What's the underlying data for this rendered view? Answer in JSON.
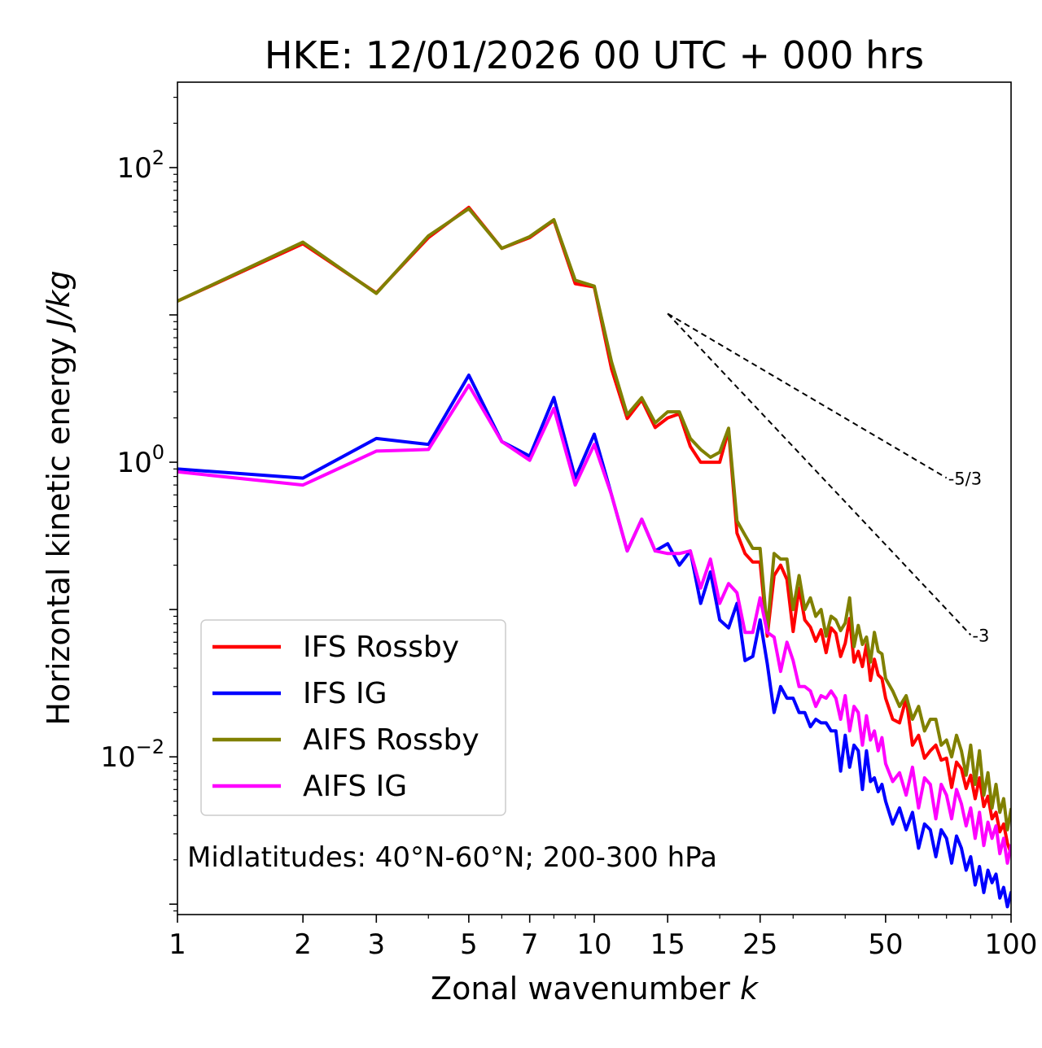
{
  "chart_data": {
    "type": "line",
    "title": "HKE: 12/01/2026 00 UTC + 000 hrs",
    "xlabel": "Zonal wavenumber",
    "xlabel_var": "k",
    "ylabel": "Horizontal kinetic energy",
    "ylabel_unit": "J/kg",
    "xscale": "log",
    "yscale": "log",
    "xlim": [
      1,
      100
    ],
    "ylim": [
      0.00085,
      380
    ],
    "xticks": [
      {
        "value": 1,
        "label": "1"
      },
      {
        "value": 2,
        "label": "2"
      },
      {
        "value": 3,
        "label": "3"
      },
      {
        "value": 5,
        "label": "5"
      },
      {
        "value": 7,
        "label": "7"
      },
      {
        "value": 10,
        "label": "10"
      },
      {
        "value": 15,
        "label": "15"
      },
      {
        "value": 25,
        "label": "25"
      },
      {
        "value": 50,
        "label": "50"
      },
      {
        "value": 100,
        "label": "100"
      }
    ],
    "yticks": [
      {
        "value": 100,
        "base": "10",
        "exp": "2"
      },
      {
        "value": 1,
        "base": "10",
        "exp": "0"
      },
      {
        "value": 0.01,
        "base": "10",
        "exp": "−2"
      }
    ],
    "annotation": "Midlatitudes: 40°N-60°N; 200-300 hPa",
    "reference_lines": [
      {
        "label": "-5/3",
        "slope": -1.6667,
        "x": [
          15,
          70
        ],
        "y0": 10.2
      },
      {
        "label": "-3",
        "slope": -3,
        "x": [
          15,
          80
        ],
        "y0": 10.2
      }
    ],
    "legend_position": "lower-left",
    "series": [
      {
        "name": "IFS Rossby",
        "color": "#ff0000",
        "x": [
          1,
          2,
          3,
          4,
          5,
          6,
          7,
          8,
          9,
          10,
          11,
          12,
          13,
          14,
          15,
          16,
          17,
          18,
          19,
          20,
          21,
          22,
          23,
          24,
          25,
          26,
          27,
          28,
          29,
          30,
          31,
          32,
          33,
          34,
          35,
          36,
          37,
          38,
          39,
          40,
          41,
          42,
          43,
          44,
          45,
          46,
          47,
          48,
          49,
          50,
          52,
          54,
          56,
          58,
          60,
          62,
          64,
          66,
          68,
          70,
          72,
          74,
          76,
          78,
          80,
          82,
          84,
          86,
          88,
          90,
          92,
          94,
          96,
          98,
          100
        ],
        "y": [
          12.4,
          30.4,
          14.1,
          33.5,
          53.7,
          28.3,
          33.5,
          43.8,
          16.3,
          15.5,
          4.3,
          1.98,
          2.65,
          1.72,
          2.0,
          2.13,
          1.28,
          1.0,
          1.0,
          1.0,
          1.65,
          0.33,
          0.24,
          0.21,
          0.21,
          0.066,
          0.17,
          0.2,
          0.16,
          0.071,
          0.14,
          0.085,
          0.076,
          0.061,
          0.073,
          0.051,
          0.075,
          0.069,
          0.048,
          0.059,
          0.087,
          0.044,
          0.052,
          0.041,
          0.058,
          0.033,
          0.046,
          0.036,
          0.034,
          0.025,
          0.018,
          0.017,
          0.025,
          0.012,
          0.014,
          0.0098,
          0.011,
          0.012,
          0.0095,
          0.0098,
          0.0062,
          0.0092,
          0.0083,
          0.0061,
          0.0075,
          0.0052,
          0.0072,
          0.0046,
          0.0054,
          0.0038,
          0.0042,
          0.0031,
          0.0035,
          0.0026,
          0.0022
        ]
      },
      {
        "name": "IFS IG",
        "color": "#0000ff",
        "x": [
          1,
          2,
          3,
          4,
          5,
          6,
          7,
          8,
          9,
          10,
          11,
          12,
          13,
          14,
          15,
          16,
          17,
          18,
          19,
          20,
          21,
          22,
          23,
          24,
          25,
          26,
          27,
          28,
          29,
          30,
          31,
          32,
          33,
          34,
          35,
          36,
          37,
          38,
          39,
          40,
          41,
          42,
          43,
          44,
          45,
          46,
          47,
          48,
          49,
          50,
          52,
          54,
          56,
          58,
          60,
          62,
          64,
          66,
          68,
          70,
          72,
          74,
          76,
          78,
          80,
          82,
          84,
          86,
          88,
          90,
          92,
          94,
          96,
          98,
          100
        ],
        "y": [
          0.9,
          0.78,
          1.45,
          1.32,
          3.9,
          1.38,
          1.1,
          2.75,
          0.78,
          1.55,
          0.6,
          0.25,
          0.41,
          0.25,
          0.28,
          0.2,
          0.25,
          0.11,
          0.18,
          0.085,
          0.075,
          0.11,
          0.045,
          0.048,
          0.085,
          0.043,
          0.02,
          0.03,
          0.025,
          0.025,
          0.02,
          0.02,
          0.016,
          0.018,
          0.017,
          0.017,
          0.015,
          0.015,
          0.008,
          0.014,
          0.0085,
          0.012,
          0.011,
          0.006,
          0.011,
          0.0068,
          0.0072,
          0.0058,
          0.0065,
          0.005,
          0.0035,
          0.0045,
          0.0032,
          0.0042,
          0.0024,
          0.0035,
          0.0032,
          0.0021,
          0.0032,
          0.0028,
          0.0019,
          0.0029,
          0.0024,
          0.0017,
          0.0021,
          0.00135,
          0.0018,
          0.0012,
          0.0017,
          0.0014,
          0.0016,
          0.0011,
          0.0013,
          0.00096,
          0.0012
        ]
      },
      {
        "name": "AIFS Rossby",
        "color": "#808000",
        "x": [
          1,
          2,
          3,
          4,
          5,
          6,
          7,
          8,
          9,
          10,
          11,
          12,
          13,
          14,
          15,
          16,
          17,
          18,
          19,
          20,
          21,
          22,
          23,
          24,
          25,
          26,
          27,
          28,
          29,
          30,
          31,
          32,
          33,
          34,
          35,
          36,
          37,
          38,
          39,
          40,
          41,
          42,
          43,
          44,
          45,
          46,
          47,
          48,
          49,
          50,
          52,
          54,
          56,
          58,
          60,
          62,
          64,
          66,
          68,
          70,
          72,
          74,
          76,
          78,
          80,
          82,
          84,
          86,
          88,
          90,
          92,
          94,
          96,
          98,
          100
        ],
        "y": [
          12.4,
          31.2,
          14.0,
          34.4,
          52.6,
          28.3,
          34.0,
          44.3,
          17.2,
          15.7,
          4.8,
          2.1,
          2.74,
          1.85,
          2.2,
          2.2,
          1.45,
          1.22,
          1.08,
          1.17,
          1.7,
          0.4,
          0.32,
          0.26,
          0.26,
          0.072,
          0.24,
          0.22,
          0.22,
          0.1,
          0.17,
          0.1,
          0.12,
          0.09,
          0.1,
          0.066,
          0.09,
          0.085,
          0.072,
          0.081,
          0.12,
          0.056,
          0.078,
          0.058,
          0.065,
          0.044,
          0.07,
          0.052,
          0.05,
          0.034,
          0.028,
          0.022,
          0.026,
          0.018,
          0.022,
          0.015,
          0.018,
          0.018,
          0.012,
          0.013,
          0.01,
          0.014,
          0.011,
          0.0075,
          0.012,
          0.0065,
          0.011,
          0.0055,
          0.0078,
          0.0045,
          0.0065,
          0.0042,
          0.0052,
          0.0032,
          0.0044
        ]
      },
      {
        "name": "AIFS IG",
        "color": "#ff00ff",
        "x": [
          1,
          2,
          3,
          4,
          5,
          6,
          7,
          8,
          9,
          10,
          11,
          12,
          13,
          14,
          15,
          16,
          17,
          18,
          19,
          20,
          21,
          22,
          23,
          24,
          25,
          26,
          27,
          28,
          29,
          30,
          31,
          32,
          33,
          34,
          35,
          36,
          37,
          38,
          39,
          40,
          41,
          42,
          43,
          44,
          45,
          46,
          47,
          48,
          49,
          50,
          52,
          54,
          56,
          58,
          60,
          62,
          64,
          66,
          68,
          70,
          72,
          74,
          76,
          78,
          80,
          82,
          84,
          86,
          88,
          90,
          92,
          94,
          96,
          98,
          100
        ],
        "y": [
          0.86,
          0.7,
          1.19,
          1.22,
          3.33,
          1.38,
          1.03,
          2.32,
          0.7,
          1.32,
          0.6,
          0.25,
          0.41,
          0.25,
          0.24,
          0.24,
          0.25,
          0.14,
          0.22,
          0.11,
          0.15,
          0.13,
          0.07,
          0.07,
          0.12,
          0.07,
          0.065,
          0.038,
          0.06,
          0.045,
          0.03,
          0.03,
          0.028,
          0.022,
          0.026,
          0.025,
          0.028,
          0.025,
          0.018,
          0.026,
          0.015,
          0.022,
          0.02,
          0.012,
          0.019,
          0.013,
          0.015,
          0.011,
          0.0135,
          0.009,
          0.0068,
          0.0078,
          0.0055,
          0.0085,
          0.0045,
          0.0072,
          0.0065,
          0.0038,
          0.0065,
          0.0055,
          0.0038,
          0.006,
          0.0048,
          0.0034,
          0.0045,
          0.0028,
          0.0042,
          0.0025,
          0.0036,
          0.0028,
          0.0034,
          0.0022,
          0.0028,
          0.0019,
          0.0025
        ]
      }
    ]
  }
}
